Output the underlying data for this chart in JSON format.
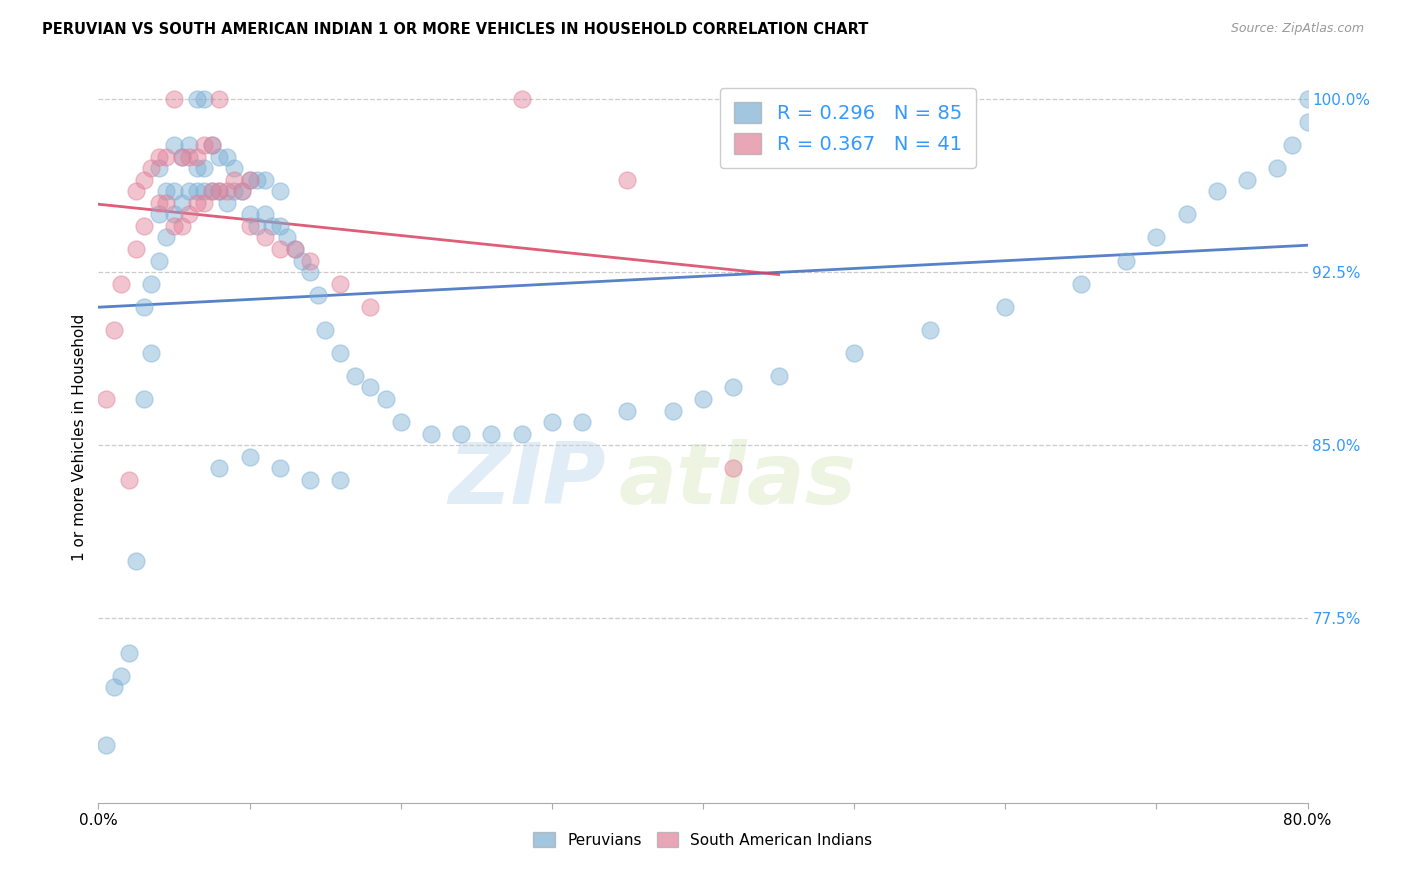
{
  "title": "PERUVIAN VS SOUTH AMERICAN INDIAN 1 OR MORE VEHICLES IN HOUSEHOLD CORRELATION CHART",
  "source": "Source: ZipAtlas.com",
  "ylabel": "1 or more Vehicles in Household",
  "legend_label_blue": "Peruvians",
  "legend_label_pink": "South American Indians",
  "R_blue": 0.296,
  "N_blue": 85,
  "R_pink": 0.367,
  "N_pink": 41,
  "color_blue": "#7bafd4",
  "color_pink": "#e08098",
  "color_blue_line": "#3a6bbf",
  "color_pink_line": "#d94060",
  "color_right_axis": "#3399ff",
  "xlim": [
    0.0,
    0.8
  ],
  "ylim": [
    0.695,
    1.012
  ],
  "xtick_values": [
    0.0,
    0.1,
    0.2,
    0.3,
    0.4,
    0.5,
    0.6,
    0.7,
    0.8
  ],
  "ytick_right_labels": [
    "100.0%",
    "92.5%",
    "85.0%",
    "77.5%"
  ],
  "ytick_right_values": [
    1.0,
    0.925,
    0.85,
    0.775
  ],
  "watermark_zip": "ZIP",
  "watermark_atlas": "atlas",
  "blue_x": [
    0.005,
    0.01,
    0.015,
    0.02,
    0.025,
    0.03,
    0.03,
    0.035,
    0.035,
    0.04,
    0.04,
    0.04,
    0.045,
    0.045,
    0.05,
    0.05,
    0.05,
    0.055,
    0.055,
    0.06,
    0.06,
    0.065,
    0.065,
    0.065,
    0.07,
    0.07,
    0.07,
    0.075,
    0.075,
    0.08,
    0.08,
    0.085,
    0.085,
    0.09,
    0.09,
    0.095,
    0.1,
    0.1,
    0.105,
    0.105,
    0.11,
    0.11,
    0.115,
    0.12,
    0.12,
    0.125,
    0.13,
    0.135,
    0.14,
    0.145,
    0.15,
    0.16,
    0.17,
    0.18,
    0.19,
    0.2,
    0.22,
    0.24,
    0.26,
    0.28,
    0.3,
    0.32,
    0.35,
    0.38,
    0.4,
    0.42,
    0.45,
    0.5,
    0.55,
    0.6,
    0.65,
    0.68,
    0.7,
    0.72,
    0.74,
    0.76,
    0.78,
    0.79,
    0.8,
    0.8,
    0.08,
    0.1,
    0.12,
    0.14,
    0.16
  ],
  "blue_y": [
    0.72,
    0.745,
    0.75,
    0.76,
    0.8,
    0.87,
    0.91,
    0.89,
    0.92,
    0.93,
    0.95,
    0.97,
    0.94,
    0.96,
    0.95,
    0.96,
    0.98,
    0.955,
    0.975,
    0.96,
    0.98,
    0.96,
    0.97,
    1.0,
    0.96,
    0.97,
    1.0,
    0.96,
    0.98,
    0.96,
    0.975,
    0.955,
    0.975,
    0.96,
    0.97,
    0.96,
    0.95,
    0.965,
    0.945,
    0.965,
    0.95,
    0.965,
    0.945,
    0.945,
    0.96,
    0.94,
    0.935,
    0.93,
    0.925,
    0.915,
    0.9,
    0.89,
    0.88,
    0.875,
    0.87,
    0.86,
    0.855,
    0.855,
    0.855,
    0.855,
    0.86,
    0.86,
    0.865,
    0.865,
    0.87,
    0.875,
    0.88,
    0.89,
    0.9,
    0.91,
    0.92,
    0.93,
    0.94,
    0.95,
    0.96,
    0.965,
    0.97,
    0.98,
    0.99,
    1.0,
    0.84,
    0.845,
    0.84,
    0.835,
    0.835
  ],
  "pink_x": [
    0.005,
    0.01,
    0.015,
    0.02,
    0.025,
    0.025,
    0.03,
    0.03,
    0.035,
    0.04,
    0.04,
    0.045,
    0.045,
    0.05,
    0.05,
    0.055,
    0.055,
    0.06,
    0.06,
    0.065,
    0.065,
    0.07,
    0.07,
    0.075,
    0.075,
    0.08,
    0.08,
    0.085,
    0.09,
    0.095,
    0.1,
    0.1,
    0.11,
    0.12,
    0.13,
    0.14,
    0.16,
    0.18,
    0.28,
    0.35,
    0.42
  ],
  "pink_y": [
    0.87,
    0.9,
    0.92,
    0.835,
    0.935,
    0.96,
    0.945,
    0.965,
    0.97,
    0.955,
    0.975,
    0.955,
    0.975,
    0.945,
    1.0,
    0.945,
    0.975,
    0.95,
    0.975,
    0.955,
    0.975,
    0.955,
    0.98,
    0.96,
    0.98,
    0.96,
    1.0,
    0.96,
    0.965,
    0.96,
    0.945,
    0.965,
    0.94,
    0.935,
    0.935,
    0.93,
    0.92,
    0.91,
    1.0,
    0.965,
    0.84
  ]
}
